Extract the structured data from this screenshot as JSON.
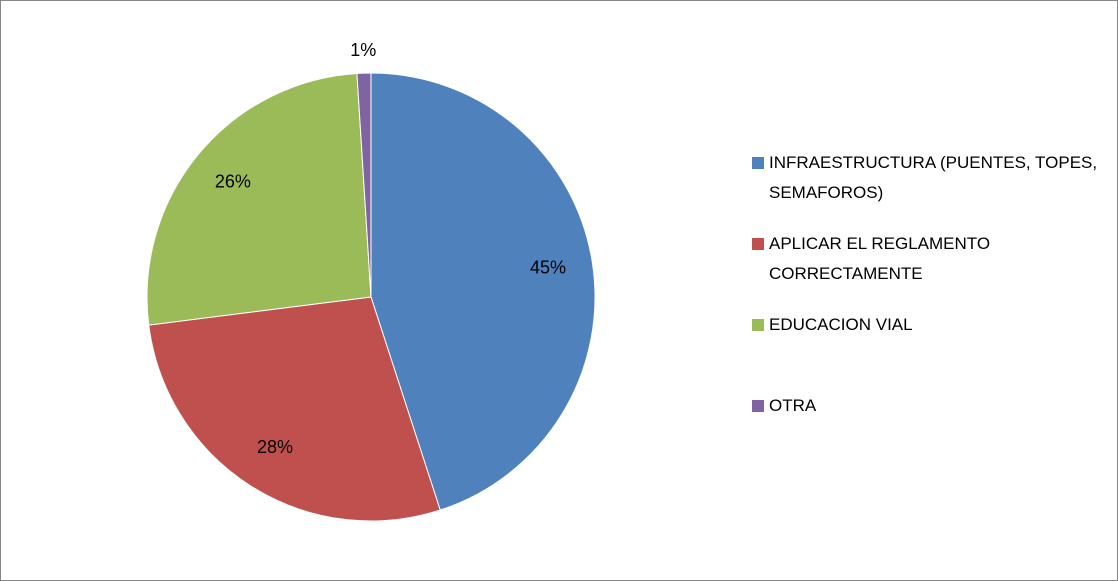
{
  "chart_data": {
    "type": "pie",
    "categories": [
      "INFRAESTRUCTURA (PUENTES, TOPES, SEMAFOROS)",
      "APLICAR EL REGLAMENTO CORRECTAMENTE",
      "EDUCACION VIAL",
      "OTRA"
    ],
    "values": [
      45,
      28,
      26,
      1
    ],
    "value_labels": [
      "45%",
      "28%",
      "26%",
      "1%"
    ],
    "colors": [
      "#4f81bd",
      "#c0504d",
      "#9bbb59",
      "#8064a2"
    ],
    "legend": "right"
  }
}
